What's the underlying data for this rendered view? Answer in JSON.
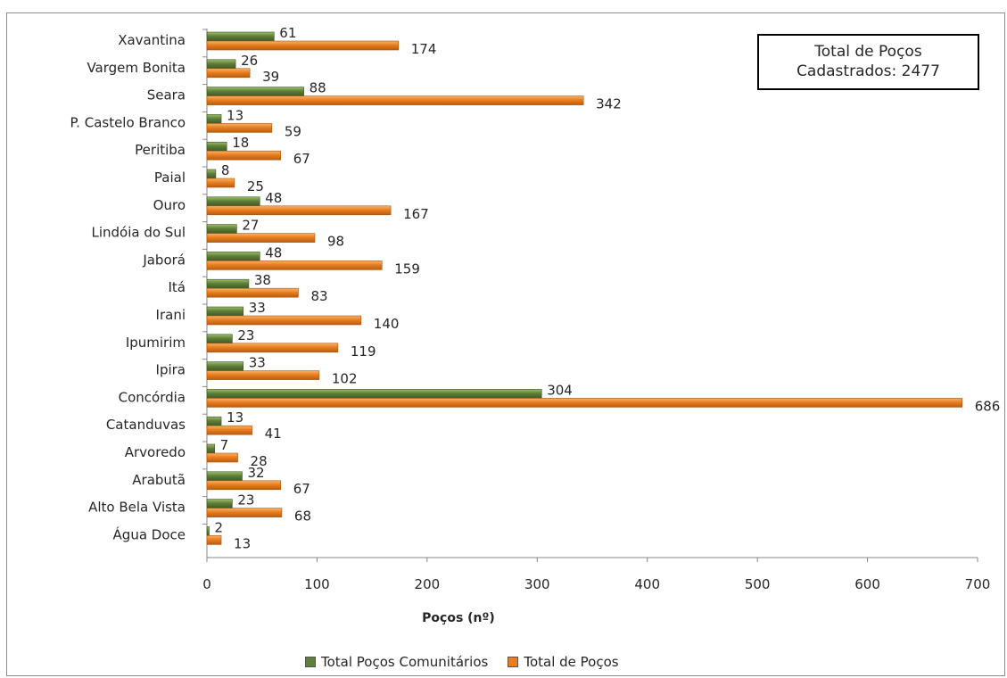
{
  "summary_box": {
    "line1": "Total de Poços",
    "line2": "Cadastrados: 2477"
  },
  "legend": {
    "series1": "Total Poços Comunitários",
    "series2": "Total de Poços"
  },
  "colors": {
    "series1": "#5f7f3a",
    "series2": "#e97e1f"
  },
  "chart_data": {
    "type": "bar",
    "orientation": "horizontal",
    "categories": [
      "Xavantina",
      "Vargem Bonita",
      "Seara",
      "P.  Castelo Branco",
      "Peritiba",
      "Paial",
      "Ouro",
      "Lindóia do Sul",
      "Jaborá",
      "Itá",
      "Irani",
      "Ipumirim",
      "Ipira",
      "Concórdia",
      "Catanduvas",
      "Arvoredo",
      "Arabutã",
      "Alto Bela Vista",
      "Água Doce"
    ],
    "series": [
      {
        "name": "Total Poços Comunitários",
        "values": [
          61,
          26,
          88,
          13,
          18,
          8,
          48,
          27,
          48,
          38,
          33,
          23,
          33,
          304,
          13,
          7,
          32,
          23,
          2
        ]
      },
      {
        "name": "Total de Poços",
        "values": [
          174,
          39,
          342,
          59,
          67,
          25,
          167,
          98,
          159,
          83,
          140,
          119,
          102,
          686,
          41,
          28,
          67,
          68,
          13
        ]
      }
    ],
    "xlabel": "Poços (nº)",
    "ylabel": "",
    "xlim": [
      0,
      700
    ],
    "xticks": [
      "0",
      "100",
      "200",
      "300",
      "400",
      "500",
      "600",
      "700"
    ],
    "grid": false,
    "legend_position": "bottom"
  }
}
